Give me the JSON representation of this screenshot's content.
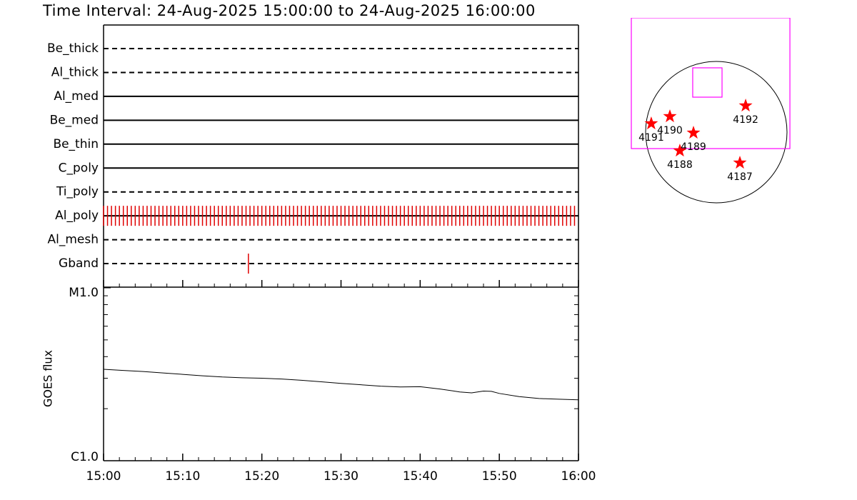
{
  "chart_data": [
    {
      "type": "timeline",
      "title": "Time Interval: 24-Aug-2025 15:00:00 to 24-Aug-2025 16:00:00",
      "categories": [
        "Be_thick",
        "Al_thick",
        "Al_med",
        "Be_med",
        "Be_thin",
        "C_poly",
        "Ti_poly",
        "Al_poly",
        "Al_mesh",
        "Gband"
      ],
      "styles": [
        "dashed",
        "dashed",
        "solid",
        "solid",
        "solid",
        "solid",
        "dashed",
        "solid",
        "dashed",
        "dashed"
      ],
      "events": [
        [],
        [],
        [],
        [],
        [],
        [],
        [],
        [
          0,
          0.5,
          1,
          1.5,
          2,
          2.5,
          3,
          3.5,
          4,
          4.5,
          5,
          5.5,
          6,
          6.5,
          7,
          7.5,
          8,
          8.5,
          9,
          9.5,
          10,
          10.5,
          11,
          11.5,
          12,
          12.5,
          13,
          13.5,
          14,
          14.5,
          15,
          15.5,
          16,
          16.5,
          17,
          17.5,
          18,
          18.5,
          19,
          19.5,
          20,
          20.5,
          21,
          21.5,
          22,
          22.5,
          23,
          23.5,
          24,
          24.5,
          25,
          25.5,
          26,
          26.5,
          27,
          27.5,
          28,
          28.5,
          29,
          29.5,
          30,
          30.5,
          31,
          31.5,
          32,
          32.5,
          33,
          33.5,
          34,
          34.5,
          35,
          35.5,
          36,
          36.5,
          37,
          37.5,
          38,
          38.5,
          39,
          39.5,
          40,
          40.5,
          41,
          41.5,
          42,
          42.5,
          43,
          43.5,
          44,
          44.5,
          45,
          45.5,
          46,
          46.5,
          47,
          47.5,
          48,
          48.5,
          49,
          49.5,
          50,
          50.5,
          51,
          51.5,
          52,
          52.5,
          53,
          53.5,
          54,
          54.5,
          55,
          55.5,
          56,
          56.5,
          57,
          57.5,
          58,
          58.5,
          59,
          59.5
        ],
        [],
        [
          18.3
        ]
      ],
      "event_color": "#e00000",
      "xlim": [
        0,
        60
      ]
    },
    {
      "type": "line",
      "ylabel": "GOES flux",
      "x": [
        0,
        2.5,
        5,
        7.5,
        10,
        12.5,
        15,
        17.5,
        20,
        22.5,
        25,
        27.5,
        30,
        32.5,
        35,
        37.5,
        40,
        42.5,
        45,
        46.5,
        48,
        49,
        50,
        52.5,
        55,
        57.5,
        60
      ],
      "values": [
        3.38e-06,
        3.33e-06,
        3.28e-06,
        3.22e-06,
        3.16e-06,
        3.1e-06,
        3.05e-06,
        3.02e-06,
        3e-06,
        2.97e-06,
        2.92e-06,
        2.86e-06,
        2.8e-06,
        2.75e-06,
        2.7e-06,
        2.67e-06,
        2.68e-06,
        2.6e-06,
        2.5e-06,
        2.47e-06,
        2.53e-06,
        2.52e-06,
        2.45e-06,
        2.35e-06,
        2.29e-06,
        2.27e-06,
        2.25e-06
      ],
      "color": "#000000",
      "log": true,
      "xlim": [
        0,
        60
      ],
      "xticks": [
        {
          "value": 0,
          "label": "15:00"
        },
        {
          "value": 10,
          "label": "15:10"
        },
        {
          "value": 20,
          "label": "15:20"
        },
        {
          "value": 30,
          "label": "15:30"
        },
        {
          "value": 40,
          "label": "15:40"
        },
        {
          "value": 50,
          "label": "15:50"
        },
        {
          "value": 60,
          "label": "16:00"
        }
      ],
      "xminorticks": [
        2,
        4,
        6,
        8,
        12,
        14,
        16,
        18,
        22,
        24,
        26,
        28,
        32,
        34,
        36,
        38,
        42,
        44,
        46,
        48,
        52,
        54,
        56,
        58
      ],
      "ylim": [
        1e-06,
        1e-05
      ],
      "yticks": [
        {
          "value": 1e-06,
          "label": "C1.0"
        },
        {
          "value": 1e-05,
          "label": "M1.0"
        }
      ],
      "yminorticks": [
        2e-06,
        3e-06,
        4e-06,
        5e-06,
        6e-06,
        7e-06,
        8e-06,
        9e-06
      ]
    },
    {
      "type": "map",
      "radius": 950,
      "labels": [
        "4192",
        "4191",
        "4190",
        "4189",
        "4188",
        "4187"
      ],
      "x": [
        394,
        -874,
        -624,
        -307,
        -490,
        317
      ],
      "y": [
        355,
        115,
        211,
        -10,
        -250,
        -413
      ],
      "color": "#ff0000",
      "boxes": [
        [
          -317,
          470,
          77,
          864
        ],
        [
          -1142,
          -221,
          989,
          1536
        ]
      ],
      "box_color": "#ff00ff"
    }
  ]
}
